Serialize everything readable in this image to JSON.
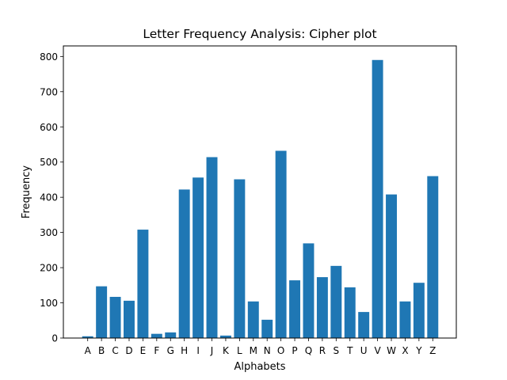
{
  "chart_data": {
    "type": "bar",
    "title": "Letter Frequency Analysis: Cipher  plot",
    "xlabel": "Alphabets",
    "ylabel": "Frequency",
    "categories": [
      "A",
      "B",
      "C",
      "D",
      "E",
      "F",
      "G",
      "H",
      "I",
      "J",
      "K",
      "L",
      "M",
      "N",
      "O",
      "P",
      "Q",
      "R",
      "S",
      "T",
      "U",
      "V",
      "W",
      "X",
      "Y",
      "Z"
    ],
    "values": [
      5,
      147,
      117,
      106,
      308,
      12,
      16,
      422,
      456,
      514,
      7,
      451,
      104,
      52,
      532,
      164,
      269,
      173,
      205,
      144,
      74,
      790,
      408,
      104,
      157,
      460
    ],
    "ylim": [
      0,
      830
    ],
    "yticks": [
      0,
      100,
      200,
      300,
      400,
      500,
      600,
      700,
      800
    ],
    "grid": false,
    "legend": "none",
    "bar_color": "#1f77b4"
  }
}
